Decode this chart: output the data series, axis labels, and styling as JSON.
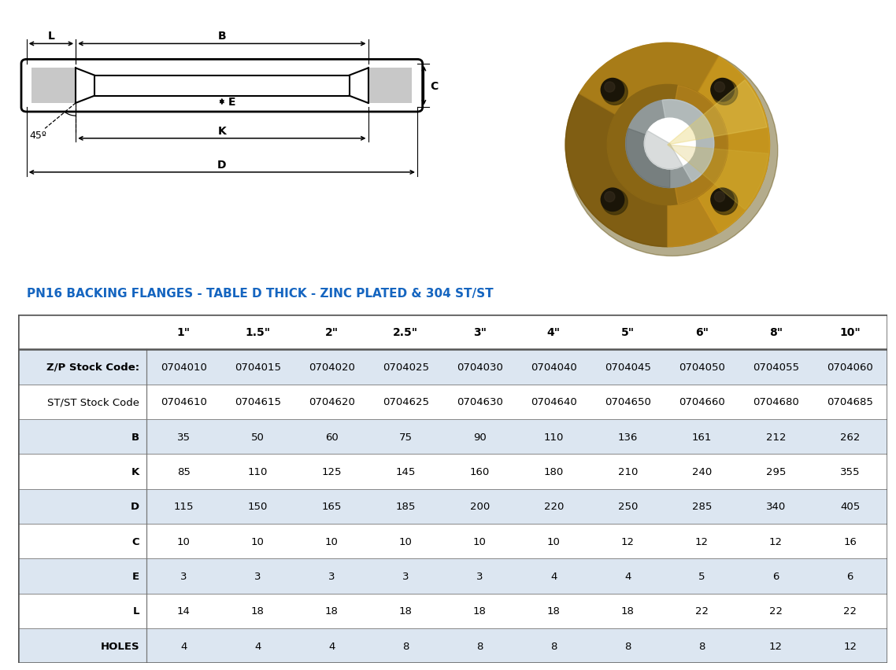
{
  "title": "PN16 BACKING FLANGES - TABLE D THICK - ZINC PLATED & 304 ST/ST",
  "title_color": "#1565C0",
  "col_headers": [
    "1\"",
    "1.5\"",
    "2\"",
    "2.5\"",
    "3\"",
    "4\"",
    "5\"",
    "6\"",
    "8\"",
    "10\""
  ],
  "row_headers": [
    "Z/P Stock Code:",
    "ST/ST Stock Code",
    "B",
    "K",
    "D",
    "C",
    "E",
    "L",
    "HOLES"
  ],
  "table_data": [
    [
      "0704010",
      "0704015",
      "0704020",
      "0704025",
      "0704030",
      "0704040",
      "0704045",
      "0704050",
      "0704055",
      "0704060"
    ],
    [
      "0704610",
      "0704615",
      "0704620",
      "0704625",
      "0704630",
      "0704640",
      "0704650",
      "0704660",
      "0704680",
      "0704685"
    ],
    [
      "35",
      "50",
      "60",
      "75",
      "90",
      "110",
      "136",
      "161",
      "212",
      "262"
    ],
    [
      "85",
      "110",
      "125",
      "145",
      "160",
      "180",
      "210",
      "240",
      "295",
      "355"
    ],
    [
      "115",
      "150",
      "165",
      "185",
      "200",
      "220",
      "250",
      "285",
      "340",
      "405"
    ],
    [
      "10",
      "10",
      "10",
      "10",
      "10",
      "10",
      "12",
      "12",
      "12",
      "16"
    ],
    [
      "3",
      "3",
      "3",
      "3",
      "3",
      "4",
      "4",
      "5",
      "6",
      "6"
    ],
    [
      "14",
      "18",
      "18",
      "18",
      "18",
      "18",
      "18",
      "22",
      "22",
      "22"
    ],
    [
      "4",
      "4",
      "4",
      "8",
      "8",
      "8",
      "8",
      "8",
      "12",
      "12"
    ]
  ],
  "shaded_rows": [
    0,
    2,
    4,
    6,
    8
  ],
  "shade_color": "#dce6f1",
  "white_color": "#ffffff",
  "line_color": "#000000",
  "gray_fill": "#c8c8c8"
}
